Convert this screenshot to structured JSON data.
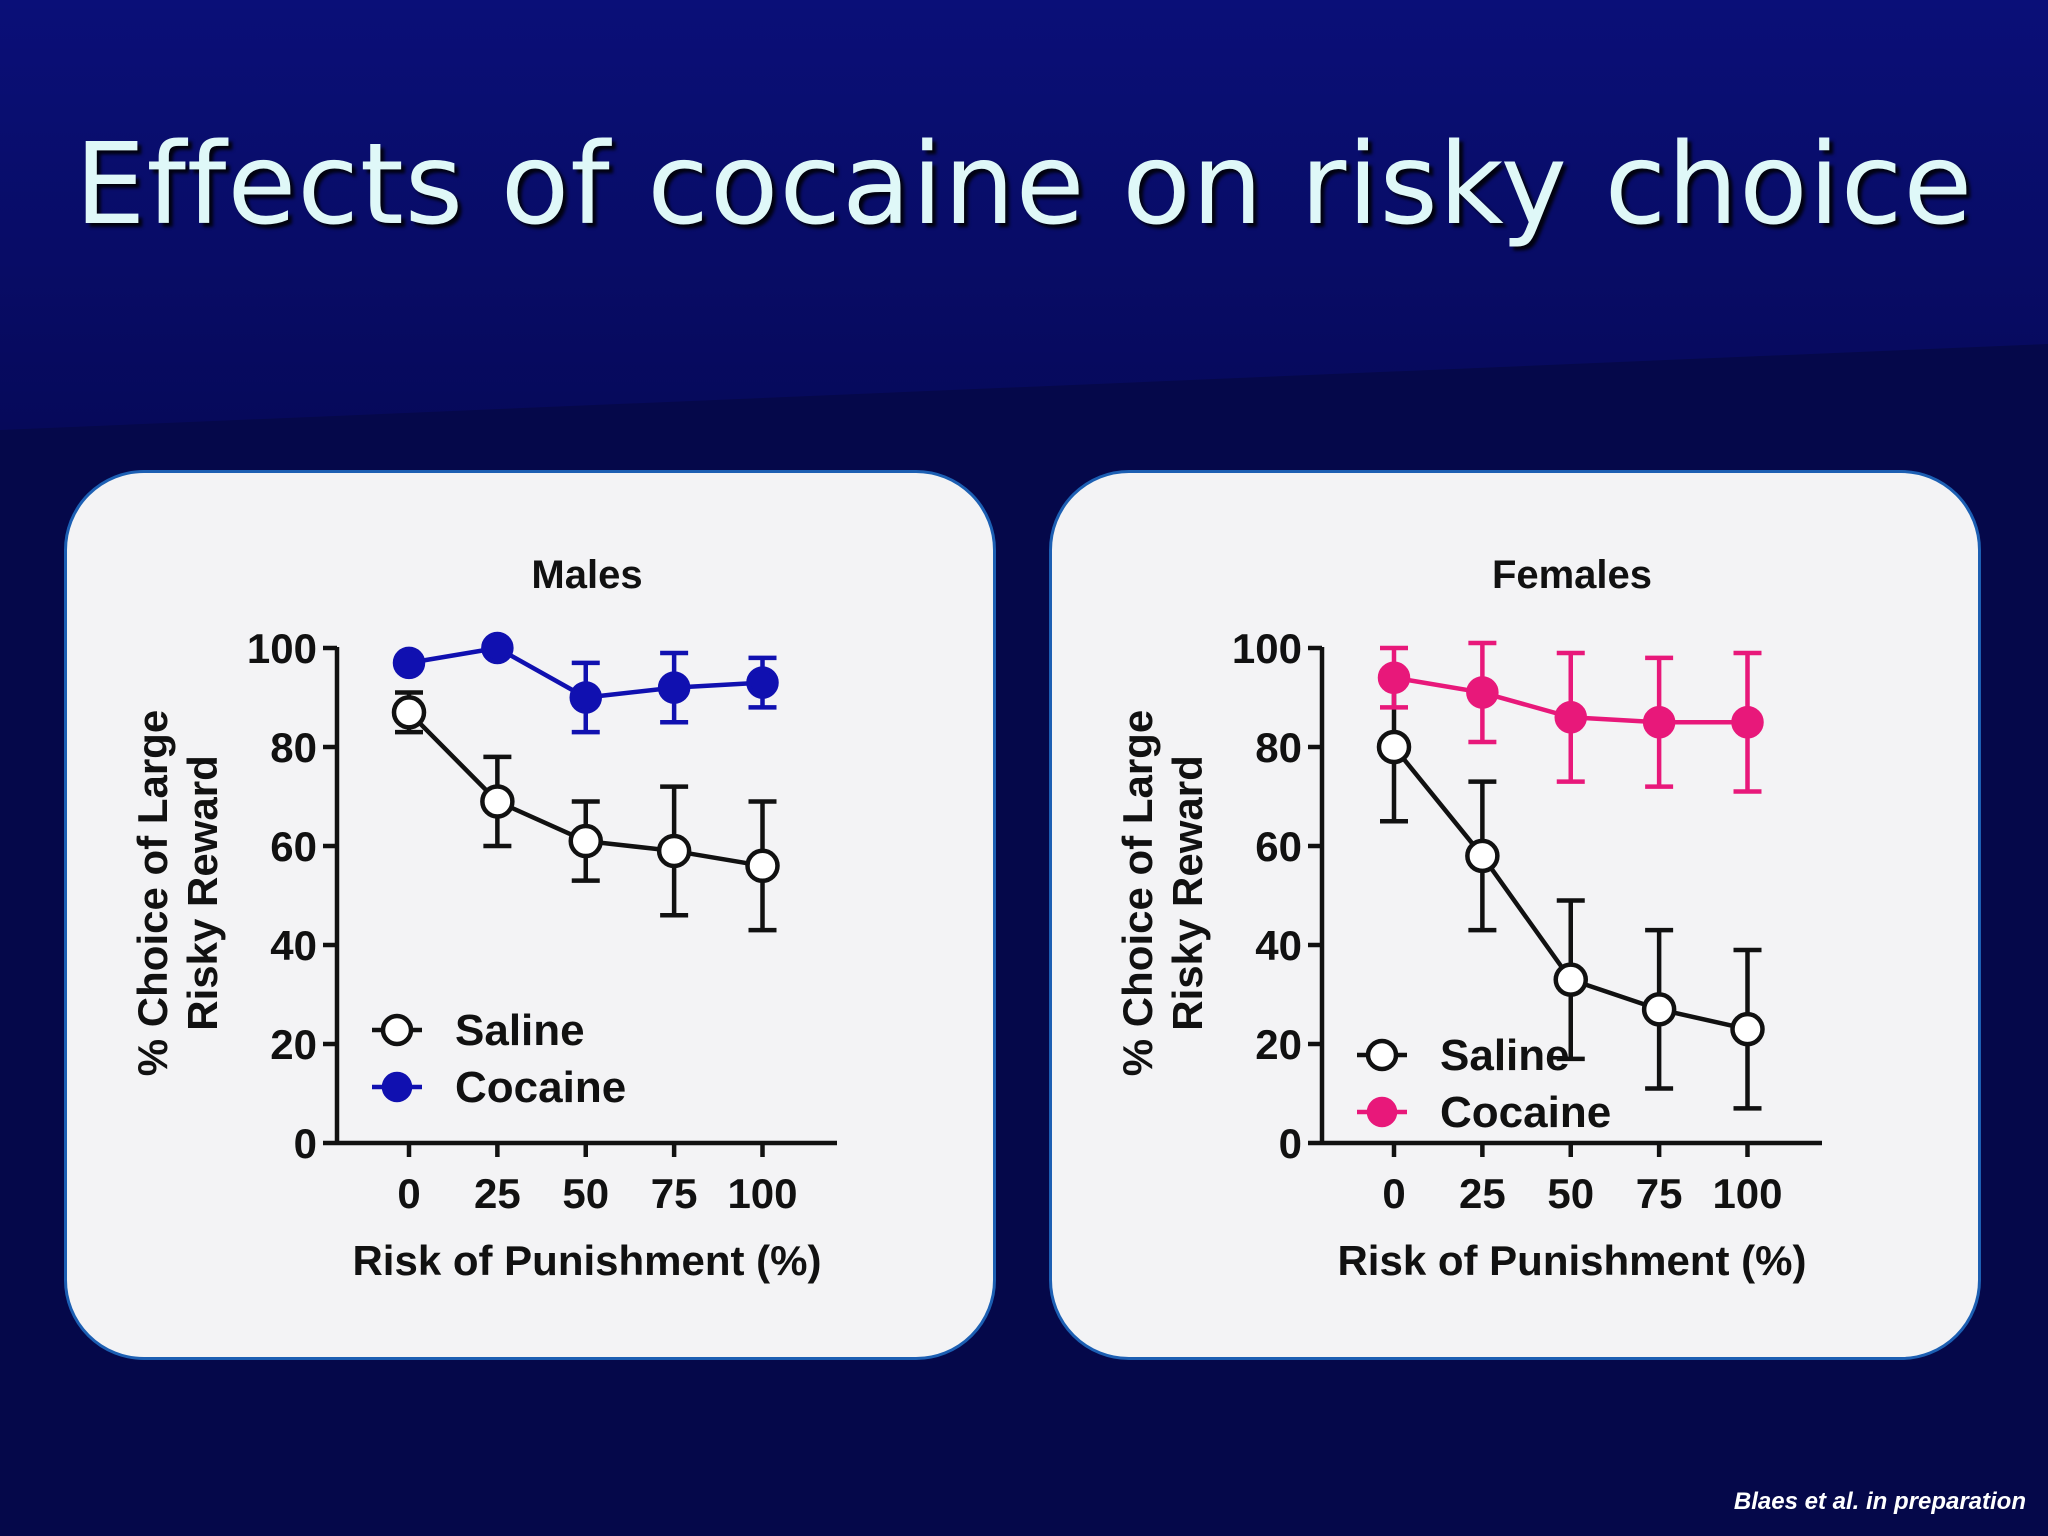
{
  "slide": {
    "title": "Effects of cocaine on risky choice",
    "citation": "Blaes et al. in preparation"
  },
  "chart_data": [
    {
      "type": "line",
      "title": "Males",
      "xlabel": "Risk of Punishment (%)",
      "ylabel_line1": "% Choice of Large",
      "ylabel_line2": "Risky Reward",
      "x": [
        0,
        25,
        50,
        75,
        100
      ],
      "xticks": [
        "0",
        "25",
        "50",
        "75",
        "100"
      ],
      "yticks": [
        "0",
        "20",
        "40",
        "60",
        "80",
        "100"
      ],
      "ylim": [
        0,
        100
      ],
      "legend_position": "bottom-left",
      "series": [
        {
          "name": "Saline",
          "color": "#111111",
          "marker": "open-circle",
          "values": [
            87,
            69,
            61,
            59,
            56
          ],
          "errors": [
            4,
            9,
            8,
            13,
            13
          ]
        },
        {
          "name": "Cocaine",
          "color": "#1010b0",
          "marker": "filled-circle",
          "values": [
            97,
            100,
            90,
            92,
            93
          ],
          "errors": [
            0,
            0,
            7,
            7,
            5
          ]
        }
      ]
    },
    {
      "type": "line",
      "title": "Females",
      "xlabel": "Risk of Punishment (%)",
      "ylabel_line1": "% Choice of Large",
      "ylabel_line2": "Risky Reward",
      "x": [
        0,
        25,
        50,
        75,
        100
      ],
      "xticks": [
        "0",
        "25",
        "50",
        "75",
        "100"
      ],
      "yticks": [
        "0",
        "20",
        "40",
        "60",
        "80",
        "100"
      ],
      "ylim": [
        0,
        100
      ],
      "legend_position": "bottom-left",
      "series": [
        {
          "name": "Saline",
          "color": "#111111",
          "marker": "open-circle",
          "values": [
            80,
            58,
            33,
            27,
            23
          ],
          "errors": [
            15,
            15,
            16,
            16,
            16
          ]
        },
        {
          "name": "Cocaine",
          "color": "#e8187a",
          "marker": "filled-circle",
          "values": [
            94,
            91,
            86,
            85,
            85
          ],
          "errors": [
            6,
            10,
            13,
            13,
            14
          ]
        }
      ]
    }
  ]
}
